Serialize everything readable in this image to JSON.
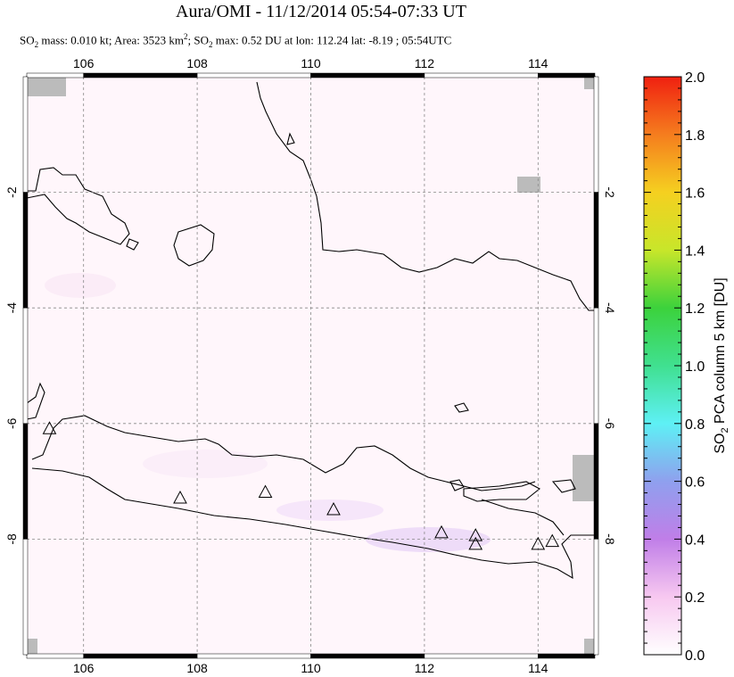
{
  "header": {
    "title": "Aura/OMI - 11/12/2014 05:54-07:33 UT",
    "subtitle_parts": {
      "p1": "SO",
      "p1_sub": "2",
      "p2": " mass: 0.010 kt; Area: 3523 km",
      "p2_sup": "2",
      "p3": "; SO",
      "p3_sub": "2",
      "p4": " max: 0.52 DU at lon: 112.24 lat: -8.19 ; 05:54UTC"
    }
  },
  "map": {
    "lon_range": [
      105.0,
      115.0
    ],
    "lat_range": [
      -10.0,
      0.0
    ],
    "lon_ticks": [
      {
        "value": 106,
        "label": "106"
      },
      {
        "value": 108,
        "label": "108"
      },
      {
        "value": 110,
        "label": "110"
      },
      {
        "value": 112,
        "label": "112"
      },
      {
        "value": 114,
        "label": "114"
      }
    ],
    "lat_ticks": [
      {
        "value": -2,
        "label": "-2"
      },
      {
        "value": -4,
        "label": "-4"
      },
      {
        "value": -6,
        "label": "-6"
      },
      {
        "value": -8,
        "label": "-8"
      }
    ],
    "volcanoes": [
      {
        "lon": 105.4,
        "lat": -6.1
      },
      {
        "lon": 107.7,
        "lat": -7.3
      },
      {
        "lon": 109.2,
        "lat": -7.2
      },
      {
        "lon": 110.4,
        "lat": -7.5
      },
      {
        "lon": 112.3,
        "lat": -7.9
      },
      {
        "lon": 112.9,
        "lat": -7.95
      },
      {
        "lon": 112.9,
        "lat": -8.1
      },
      {
        "lon": 114.0,
        "lat": -8.1
      },
      {
        "lon": 114.25,
        "lat": -8.05
      }
    ]
  },
  "colorbar": {
    "label": "SO2 PCA column 5 km [DU]",
    "label_main": "SO",
    "label_sub": "2",
    "label_rest": " PCA column 5 km [DU]",
    "min": 0.0,
    "max": 2.0,
    "ticks": [
      "0.0",
      "0.2",
      "0.4",
      "0.6",
      "0.8",
      "1.0",
      "1.2",
      "1.4",
      "1.6",
      "1.8",
      "2.0"
    ],
    "colors": [
      "#ffffff",
      "#f7c8f0",
      "#c07ee8",
      "#8fa0ee",
      "#5ef0f5",
      "#40e090",
      "#3cd23c",
      "#c8e62a",
      "#f5d020",
      "#f57d1e",
      "#f02010"
    ]
  }
}
